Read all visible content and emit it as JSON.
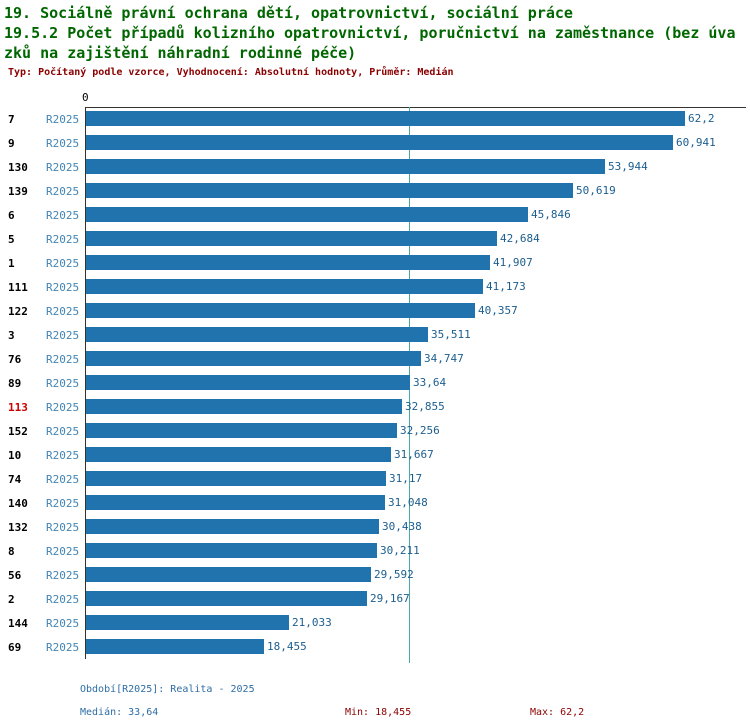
{
  "header": {
    "title_line1": "19. Sociálně právní ochrana dětí, opatrovnictví, sociální práce",
    "title_line2": "19.5.2 Počet případů kolizního opatrovnictví, poručnictví na zaměstnance (bez úva",
    "title_line3": "zků na zajištění náhradní rodinné péče)",
    "subtitle": "Typ: Počítaný podle vzorce, Vyhodnocení: Absolutní hodnoty, Průměr: Medián"
  },
  "chart_data": {
    "type": "bar",
    "orientation": "horizontal",
    "title": "19.5.2 Počet případů kolizního opatrovnictví, poručnictví na zaměstnance (bez úvazků na zajištění náhradní rodinné péče)",
    "series_label": "R2025",
    "categories": [
      "7",
      "9",
      "130",
      "139",
      "6",
      "5",
      "1",
      "111",
      "122",
      "3",
      "76",
      "89",
      "113",
      "152",
      "10",
      "74",
      "140",
      "132",
      "8",
      "56",
      "2",
      "144",
      "69"
    ],
    "values": [
      62.2,
      60.941,
      53.944,
      50.619,
      45.846,
      42.684,
      41.907,
      41.173,
      40.357,
      35.511,
      34.747,
      33.64,
      32.855,
      32.256,
      31.667,
      31.17,
      31.048,
      30.438,
      30.211,
      29.592,
      29.167,
      21.033,
      18.455
    ],
    "value_labels": [
      "62,2",
      "60,941",
      "53,944",
      "50,619",
      "45,846",
      "42,684",
      "41,907",
      "41,173",
      "40,357",
      "35,511",
      "34,747",
      "33,64",
      "32,855",
      "32,256",
      "31,667",
      "31,17",
      "31,048",
      "30,438",
      "30,211",
      "29,592",
      "29,167",
      "21,033",
      "18,455"
    ],
    "highlighted_category": "113",
    "xlim": [
      0,
      62.2
    ],
    "axis_zero_label": "0",
    "median_line_value": 33.64,
    "legend_position": "none",
    "grid": false
  },
  "footer": {
    "period": "Období[R2025]: Realita - 2025",
    "median": "Medián: 33,64",
    "min": "Min: 18,455",
    "max": "Max: 62,2"
  },
  "colors": {
    "title": "#006600",
    "subtitle": "#8b0000",
    "bar": "#2173ae",
    "value_label": "#1b5e8f",
    "series_label": "#4184b4",
    "category_label": "#000000",
    "highlight": "#cc0000",
    "median_line": "#44aaaa",
    "axis": "#333333",
    "footer_blue": "#2e6da4",
    "footer_maroon": "#8b0000"
  }
}
